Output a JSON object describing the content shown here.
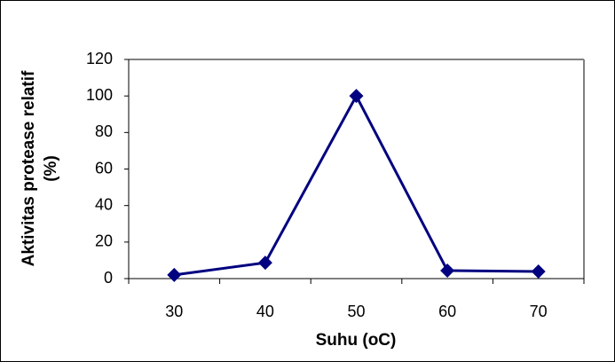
{
  "chart_data": {
    "type": "line",
    "categories": [
      "30",
      "40",
      "50",
      "60",
      "70"
    ],
    "series": [
      {
        "name": "Aktivitas protease relatif",
        "color": "#000080",
        "values": [
          2,
          8.7,
          100,
          4.4,
          3.9
        ]
      }
    ],
    "xlabel": "Suhu (oC)",
    "ylabel": [
      "Aktivitas protease relatif",
      "(%)"
    ],
    "ylim": [
      0,
      120
    ],
    "yticks": [
      0,
      20,
      40,
      60,
      80,
      100,
      120
    ]
  }
}
